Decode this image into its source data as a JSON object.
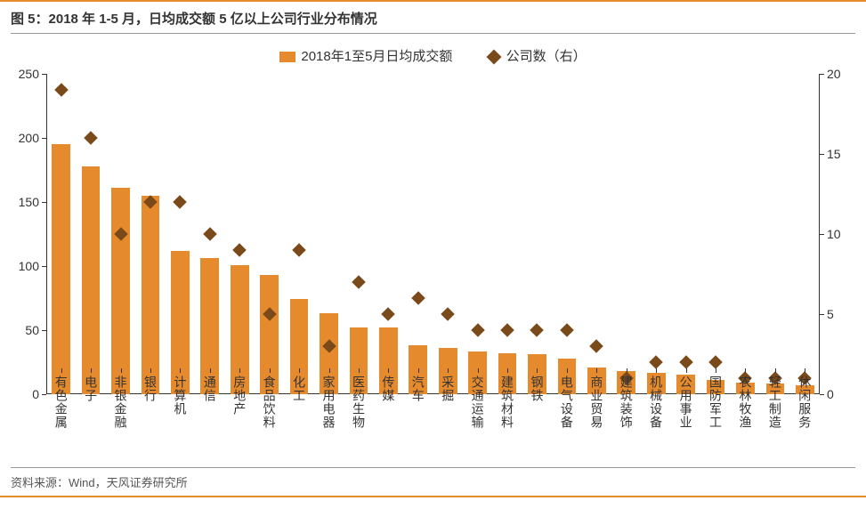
{
  "title": "图 5：2018 年 1-5 月，日均成交额 5 亿以上公司行业分布情况",
  "legend": {
    "bar_label": "2018年1至5月日均成交额",
    "diamond_label": "公司数（右）"
  },
  "chart": {
    "type": "bar+scatter",
    "categories": [
      "有色金属",
      "电子",
      "非银金融",
      "银行",
      "计算机",
      "通信",
      "房地产",
      "食品饮料",
      "化工",
      "家用电器",
      "医药生物",
      "传媒",
      "汽车",
      "采掘",
      "交通运输",
      "建筑材料",
      "钢铁",
      "电气设备",
      "商业贸易",
      "建筑装饰",
      "机械设备",
      "公用事业",
      "国防军工",
      "农林牧渔",
      "轻工制造",
      "休闲服务"
    ],
    "bar_values": [
      195,
      178,
      161,
      155,
      112,
      106,
      101,
      93,
      74,
      63,
      52,
      52,
      38,
      36,
      33,
      32,
      31,
      28,
      21,
      18,
      17,
      15,
      11,
      9,
      8,
      7
    ],
    "diamond_values": [
      19,
      16,
      10,
      12,
      12,
      10,
      9,
      5,
      9,
      3,
      7,
      5,
      6,
      5,
      4,
      4,
      4,
      4,
      3,
      1,
      2,
      2,
      2,
      1,
      1,
      1
    ],
    "y_left": {
      "min": 0,
      "max": 250,
      "step": 50,
      "ticks": [
        0,
        50,
        100,
        150,
        200,
        250
      ]
    },
    "y_right": {
      "min": 0,
      "max": 20,
      "step": 5,
      "ticks": [
        0,
        5,
        10,
        15,
        20
      ]
    },
    "bar_color": "#e68a2e",
    "diamond_color": "#7a4a1a",
    "background_color": "#ffffff",
    "axis_color": "#333333",
    "title_fontsize": 15,
    "label_fontsize": 14,
    "bar_width_ratio": 0.62
  },
  "source": "资料来源：Wind，天风证券研究所"
}
